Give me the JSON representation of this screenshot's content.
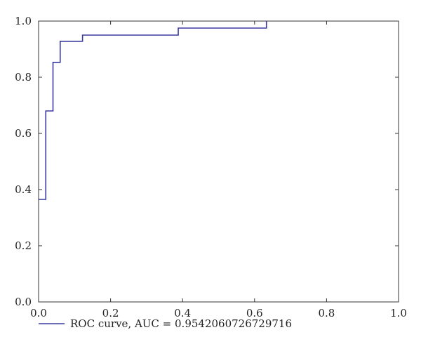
{
  "chart_data": {
    "type": "line",
    "title": "",
    "xlabel": "",
    "ylabel": "",
    "xlim": [
      0.0,
      1.0
    ],
    "ylim": [
      0.0,
      1.0
    ],
    "x_ticks": [
      0.0,
      0.2,
      0.4,
      0.6,
      0.8,
      1.0
    ],
    "y_ticks": [
      0.0,
      0.2,
      0.4,
      0.6,
      0.8,
      1.0
    ],
    "x_tick_labels": [
      "0.0",
      "0.2",
      "0.4",
      "0.6",
      "0.8",
      "1.0"
    ],
    "y_tick_labels": [
      "0.0",
      "0.2",
      "0.4",
      "0.6",
      "0.8",
      "1.0"
    ],
    "grid": false,
    "legend_position": "bottom-left",
    "series": [
      {
        "name": "ROC curve, AUC = 0.9542060726729716",
        "color": "#3a3aa0",
        "step": true,
        "x": [
          0.0,
          0.02,
          0.02,
          0.04,
          0.04,
          0.06,
          0.06,
          0.122,
          0.122,
          0.388,
          0.388,
          0.633,
          0.633
        ],
        "y": [
          0.365,
          0.365,
          0.68,
          0.68,
          0.853,
          0.853,
          0.928,
          0.928,
          0.95,
          0.95,
          0.975,
          0.975,
          1.0
        ]
      }
    ]
  }
}
